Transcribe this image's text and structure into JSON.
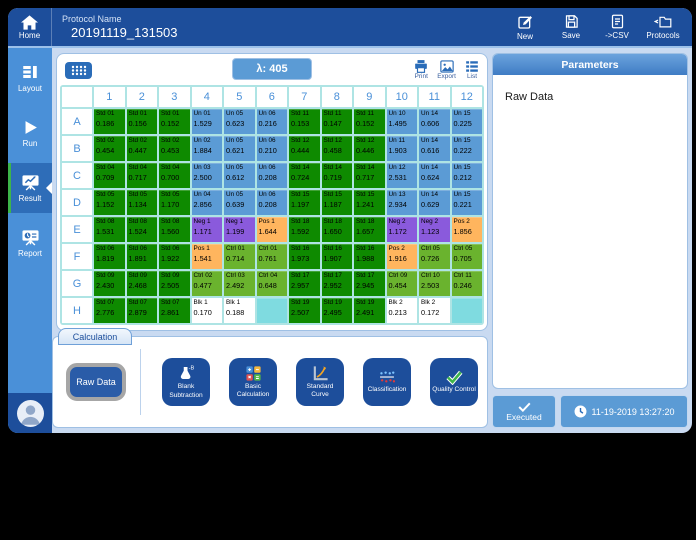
{
  "topbar": {
    "home_label": "Home",
    "protocol_label": "Protocol Name",
    "protocol_value": "20191119_131503",
    "actions": [
      {
        "icon": "new-icon",
        "label": "New"
      },
      {
        "icon": "save-icon",
        "label": "Save"
      },
      {
        "icon": "csv-icon",
        "label": "->CSV"
      },
      {
        "icon": "protocols-icon",
        "label": "Protocols"
      }
    ]
  },
  "sidebar": {
    "items": [
      {
        "icon": "layout-icon",
        "label": "Layout",
        "active": false
      },
      {
        "icon": "run-icon",
        "label": "Run",
        "active": false
      },
      {
        "icon": "result-icon",
        "label": "Result",
        "active": true
      },
      {
        "icon": "report-icon",
        "label": "Report",
        "active": false
      }
    ]
  },
  "plate": {
    "wavelength": "λ: 405",
    "tools": [
      {
        "icon": "print-icon",
        "label": "Print"
      },
      {
        "icon": "export-icon",
        "label": "Export"
      },
      {
        "icon": "list-icon",
        "label": "List"
      }
    ],
    "columns": [
      "1",
      "2",
      "3",
      "4",
      "5",
      "6",
      "7",
      "8",
      "9",
      "10",
      "11",
      "12"
    ],
    "row_labels": [
      "A",
      "B",
      "C",
      "D",
      "E",
      "F",
      "G",
      "H"
    ],
    "colors": {
      "std": "#0e8a00",
      "un": "#5b9bd5",
      "ctrl": "#6ab32e",
      "neg": "#8a5adc",
      "pos": "#ffb55e",
      "blk": "#ffffff",
      "empty": "#7fdbe0"
    },
    "wells": [
      [
        [
          "Std 01",
          "0.186",
          "std"
        ],
        [
          "Std 01",
          "0.156",
          "std"
        ],
        [
          "Std 01",
          "0.152",
          "std"
        ],
        [
          "Un 01",
          "1.529",
          "un"
        ],
        [
          "Un 05",
          "0.623",
          "un"
        ],
        [
          "Un 06",
          "0.216",
          "un"
        ],
        [
          "Std 11",
          "0.153",
          "std"
        ],
        [
          "Std 11",
          "0.147",
          "std"
        ],
        [
          "Std 11",
          "0.152",
          "std"
        ],
        [
          "Un 10",
          "1.495",
          "un"
        ],
        [
          "Un 14",
          "0.606",
          "un"
        ],
        [
          "Un 15",
          "0.225",
          "un"
        ]
      ],
      [
        [
          "Std 02",
          "0.454",
          "std"
        ],
        [
          "Std 02",
          "0.447",
          "std"
        ],
        [
          "Std 02",
          "0.453",
          "std"
        ],
        [
          "Un 02",
          "1.884",
          "un"
        ],
        [
          "Un 05",
          "0.621",
          "un"
        ],
        [
          "Un 06",
          "0.210",
          "un"
        ],
        [
          "Std 12",
          "0.444",
          "std"
        ],
        [
          "Std 12",
          "0.458",
          "std"
        ],
        [
          "Std 12",
          "0.446",
          "std"
        ],
        [
          "Un 11",
          "1.903",
          "un"
        ],
        [
          "Un 14",
          "0.616",
          "un"
        ],
        [
          "Un 15",
          "0.222",
          "un"
        ]
      ],
      [
        [
          "Std 04",
          "0.709",
          "std"
        ],
        [
          "Std 04",
          "0.717",
          "std"
        ],
        [
          "Std 04",
          "0.700",
          "std"
        ],
        [
          "Un 03",
          "2.500",
          "un"
        ],
        [
          "Un 05",
          "0.612",
          "un"
        ],
        [
          "Un 06",
          "0.208",
          "un"
        ],
        [
          "Std 14",
          "0.724",
          "std"
        ],
        [
          "Std 14",
          "0.719",
          "std"
        ],
        [
          "Std 14",
          "0.717",
          "std"
        ],
        [
          "Un 12",
          "2.531",
          "un"
        ],
        [
          "Un 14",
          "0.624",
          "un"
        ],
        [
          "Un 15",
          "0.212",
          "un"
        ]
      ],
      [
        [
          "Std 05",
          "1.152",
          "std"
        ],
        [
          "Std 05",
          "1.134",
          "std"
        ],
        [
          "Std 05",
          "1.170",
          "std"
        ],
        [
          "Un 04",
          "2.856",
          "un"
        ],
        [
          "Un 05",
          "0.639",
          "un"
        ],
        [
          "Un 06",
          "0.208",
          "un"
        ],
        [
          "Std 15",
          "1.197",
          "std"
        ],
        [
          "Std 15",
          "1.187",
          "std"
        ],
        [
          "Std 15",
          "1.241",
          "std"
        ],
        [
          "Un 13",
          "2.934",
          "un"
        ],
        [
          "Un 14",
          "0.629",
          "un"
        ],
        [
          "Un 15",
          "0.221",
          "un"
        ]
      ],
      [
        [
          "Std 08",
          "1.531",
          "std"
        ],
        [
          "Std 08",
          "1.524",
          "std"
        ],
        [
          "Std 08",
          "1.560",
          "std"
        ],
        [
          "Neg 1",
          "1.171",
          "neg"
        ],
        [
          "Neg 1",
          "1.199",
          "neg"
        ],
        [
          "Pos 1",
          "1.644",
          "pos"
        ],
        [
          "Std 18",
          "1.592",
          "std"
        ],
        [
          "Std 18",
          "1.650",
          "std"
        ],
        [
          "Std 18",
          "1.657",
          "std"
        ],
        [
          "Neg 2",
          "1.172",
          "neg"
        ],
        [
          "Neg 2",
          "1.123",
          "neg"
        ],
        [
          "Pos 2",
          "1.856",
          "pos"
        ]
      ],
      [
        [
          "Std 06",
          "1.819",
          "std"
        ],
        [
          "Std 06",
          "1.891",
          "std"
        ],
        [
          "Std 06",
          "1.922",
          "std"
        ],
        [
          "Pos 1",
          "1.541",
          "pos"
        ],
        [
          "Ctrl 01",
          "0.714",
          "ctrl"
        ],
        [
          "Ctrl 01",
          "0.761",
          "ctrl"
        ],
        [
          "Std 16",
          "1.973",
          "std"
        ],
        [
          "Std 16",
          "1.907",
          "std"
        ],
        [
          "Std 16",
          "1.988",
          "std"
        ],
        [
          "Pos 2",
          "1.916",
          "pos"
        ],
        [
          "Ctrl 05",
          "0.726",
          "ctrl"
        ],
        [
          "Ctrl 05",
          "0.705",
          "ctrl"
        ]
      ],
      [
        [
          "Std 09",
          "2.430",
          "std"
        ],
        [
          "Std 09",
          "2.468",
          "std"
        ],
        [
          "Std 09",
          "2.505",
          "std"
        ],
        [
          "Ctrl 02",
          "0.477",
          "ctrl"
        ],
        [
          "Ctrl 03",
          "2.492",
          "ctrl"
        ],
        [
          "Ctrl 04",
          "0.648",
          "ctrl"
        ],
        [
          "Std 17",
          "2.957",
          "std"
        ],
        [
          "Std 17",
          "2.952",
          "std"
        ],
        [
          "Std 17",
          "2.945",
          "std"
        ],
        [
          "Ctrl 09",
          "0.454",
          "ctrl"
        ],
        [
          "Ctrl 10",
          "2.503",
          "ctrl"
        ],
        [
          "Ctrl 11",
          "0.246",
          "ctrl"
        ]
      ],
      [
        [
          "Std 07",
          "2.776",
          "std"
        ],
        [
          "Std 07",
          "2.879",
          "std"
        ],
        [
          "Std 07",
          "2.861",
          "std"
        ],
        [
          "Blk 1",
          "0.170",
          "blk"
        ],
        [
          "Blk 1",
          "0.188",
          "blk"
        ],
        [
          "",
          "",
          "empty"
        ],
        [
          "Std 19",
          "2.507",
          "std"
        ],
        [
          "Std 19",
          "2.495",
          "std"
        ],
        [
          "Std 19",
          "2.491",
          "std"
        ],
        [
          "Blk 2",
          "0.213",
          "blk"
        ],
        [
          "Blk 2",
          "0.172",
          "blk"
        ],
        [
          "",
          "",
          "empty"
        ]
      ]
    ]
  },
  "calculation": {
    "tab_label": "Calculation",
    "raw_data_label": "Raw Data",
    "buttons": [
      {
        "icon": "blank-subtraction-icon",
        "label": "Blank Subtraction"
      },
      {
        "icon": "basic-calculation-icon",
        "label": "Basic Calculation"
      },
      {
        "icon": "standard-curve-icon",
        "label": "Standard Curve"
      },
      {
        "icon": "classification-icon",
        "label": "Classification"
      },
      {
        "icon": "quality-control-icon",
        "label": "Quality Control"
      }
    ]
  },
  "right_panel": {
    "header": "Parameters",
    "content": "Raw Data"
  },
  "footer": {
    "executed_label": "Executed",
    "timestamp": "11-19-2019 13:27:20"
  }
}
